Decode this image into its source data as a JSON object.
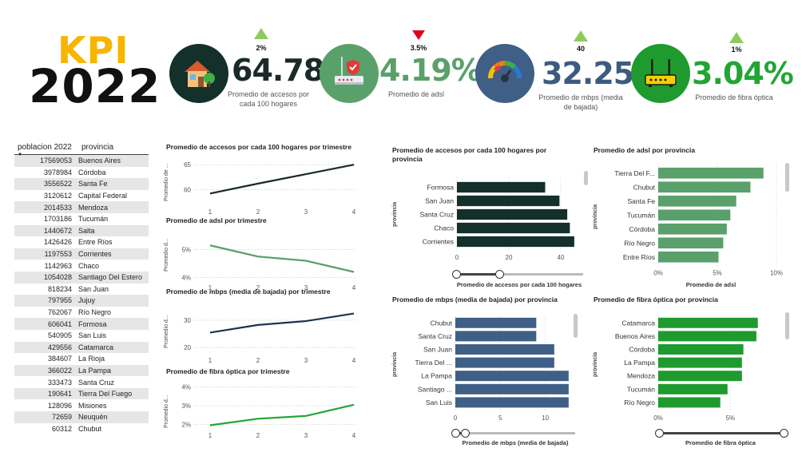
{
  "logo": {
    "line1": "KPI",
    "line2": "2022"
  },
  "kpis": [
    {
      "value": "64.78",
      "label": "Promedio de accesos por cada 100 hogares",
      "delta": "2%",
      "direction": "up",
      "color": "#1a2a28",
      "icon": "house-icon",
      "icon_bg": "#13302b"
    },
    {
      "value": "4.19%",
      "label": "Promedio de adsl",
      "delta": "3.5%",
      "direction": "down",
      "color": "#5aa06a",
      "icon": "router-icon",
      "icon_bg": "#5aa06a"
    },
    {
      "value": "32.25",
      "label": "Promedio de mbps (media de bajada)",
      "delta": "40",
      "direction": "up",
      "color": "#3c5b80",
      "icon": "speedometer-icon",
      "icon_bg": "#3f5f86"
    },
    {
      "value": "3.04%",
      "label": "Promedio de fibra óptica",
      "delta": "1%",
      "direction": "up",
      "color": "#23a535",
      "icon": "wifi-router-icon",
      "icon_bg": "#1f9a2e"
    }
  ],
  "table": {
    "headers": [
      "poblacion 2022",
      "provincia"
    ],
    "rows": [
      [
        "17569053",
        "Buenos Aires"
      ],
      [
        "3978984",
        "Córdoba"
      ],
      [
        "3556522",
        "Santa Fe"
      ],
      [
        "3120612",
        "Capital Federal"
      ],
      [
        "2014533",
        "Mendoza"
      ],
      [
        "1703186",
        "Tucumán"
      ],
      [
        "1440672",
        "Salta"
      ],
      [
        "1426426",
        "Entre Ríos"
      ],
      [
        "1197553",
        "Corrientes"
      ],
      [
        "1142963",
        "Chaco"
      ],
      [
        "1054028",
        "Santiago Del Estero"
      ],
      [
        "818234",
        "San Juan"
      ],
      [
        "797955",
        "Jujuy"
      ],
      [
        "762067",
        "Río Negro"
      ],
      [
        "606041",
        "Formosa"
      ],
      [
        "540905",
        "San Luis"
      ],
      [
        "429556",
        "Catamarca"
      ],
      [
        "384607",
        "La Rioja"
      ],
      [
        "366022",
        "La Pampa"
      ],
      [
        "333473",
        "Santa Cruz"
      ],
      [
        "190641",
        "Tierra Del Fuego"
      ],
      [
        "128096",
        "Misiones"
      ],
      [
        "72659",
        "Neuquén"
      ],
      [
        "60312",
        "Chubut"
      ]
    ]
  },
  "chart_data": [
    {
      "type": "line",
      "title": "Promedio de accesos por cada 100 hogares por trimestre",
      "ylabel": "Promedio de ...",
      "x": [
        1,
        2,
        3,
        4
      ],
      "values": [
        59.2,
        61.2,
        63.1,
        65.0
      ],
      "yticks": [
        "60",
        "65"
      ],
      "ylim": [
        57,
        66
      ],
      "color": "#1a2a28"
    },
    {
      "type": "line",
      "title": "Promedio de adsl por trimestre",
      "ylabel": "Promedio d...",
      "x": [
        1,
        2,
        3,
        4
      ],
      "values": [
        5.15,
        4.75,
        4.6,
        4.2
      ],
      "yticks": [
        "4%",
        "5%"
      ],
      "ylim": [
        3.9,
        5.5
      ],
      "color": "#5aa06a"
    },
    {
      "type": "line",
      "title": "Promedio de mbps (media de bajada) por trimestre",
      "ylabel": "Promedio d...",
      "x": [
        1,
        2,
        3,
        4
      ],
      "values": [
        25.5,
        28.3,
        29.7,
        32.5
      ],
      "yticks": [
        "20",
        "30"
      ],
      "ylim": [
        18,
        35
      ],
      "color": "#1e3352"
    },
    {
      "type": "line",
      "title": "Promedio de fibra óptica por trimestre",
      "ylabel": "Promedio d...",
      "x": [
        1,
        2,
        3,
        4
      ],
      "values": [
        1.95,
        2.3,
        2.45,
        3.05
      ],
      "yticks": [
        "2%",
        "3%",
        "4%"
      ],
      "ylim": [
        1.8,
        4.2
      ],
      "color": "#23a535"
    },
    {
      "type": "bar",
      "orientation": "horizontal",
      "title": "Promedio de accesos por cada 100 hogares por provincia",
      "ylabel": "provincia",
      "xlabel": "Promedio de accesos por cada 100 hogares",
      "categories": [
        "Formosa",
        "San Juan",
        "Santa Cruz",
        "Chaco",
        "Corrientes"
      ],
      "values": [
        34,
        39.5,
        42.5,
        43.5,
        45.2
      ],
      "xticks": [
        "0",
        "20",
        "40"
      ],
      "xlim": [
        0,
        48
      ],
      "color": "#13302b"
    },
    {
      "type": "bar",
      "orientation": "horizontal",
      "title": "Promedio de adsl por provincia",
      "ylabel": "provincia",
      "xlabel": "Promedio de adsl",
      "categories": [
        "Tierra Del F...",
        "Chubut",
        "Santa Fe",
        "Tucumán",
        "Córdoba",
        "Río Negro",
        "Entre Ríos"
      ],
      "values": [
        8.9,
        7.8,
        6.6,
        6.1,
        5.8,
        5.5,
        5.1
      ],
      "xticks": [
        "0%",
        "5%",
        "10%"
      ],
      "xlim": [
        0,
        10
      ],
      "color": "#5aa06a"
    },
    {
      "type": "bar",
      "orientation": "horizontal",
      "title": "Promedio de mbps (media de bajada) por provincia",
      "ylabel": "provincia",
      "xlabel": "Promedio de mbps (media de bajada)",
      "categories": [
        "Chubut",
        "Santa Cruz",
        "San Juan",
        "Tierra Del ...",
        "La Pampa",
        "Santiago ...",
        "San Luis"
      ],
      "values": [
        9,
        9,
        11,
        11,
        12.6,
        12.6,
        12.6
      ],
      "xticks": [
        "0",
        "5",
        "10"
      ],
      "xlim": [
        0,
        13.5
      ],
      "color": "#3f5f86"
    },
    {
      "type": "bar",
      "orientation": "horizontal",
      "title": "Promedio de fibra óptica por provincia",
      "ylabel": "provincia",
      "xlabel": "Promedio de fibra óptica",
      "categories": [
        "Catamarca",
        "Buenos Aires",
        "Córdoba",
        "La Pampa",
        "Mendoza",
        "Tucumán",
        "Río Negro"
      ],
      "values": [
        6.9,
        6.8,
        5.9,
        5.8,
        5.8,
        4.8,
        4.3
      ],
      "xticks": [
        "0%",
        "5%"
      ],
      "xlim": [
        0,
        8.3
      ],
      "color": "#1f9a2e"
    }
  ]
}
